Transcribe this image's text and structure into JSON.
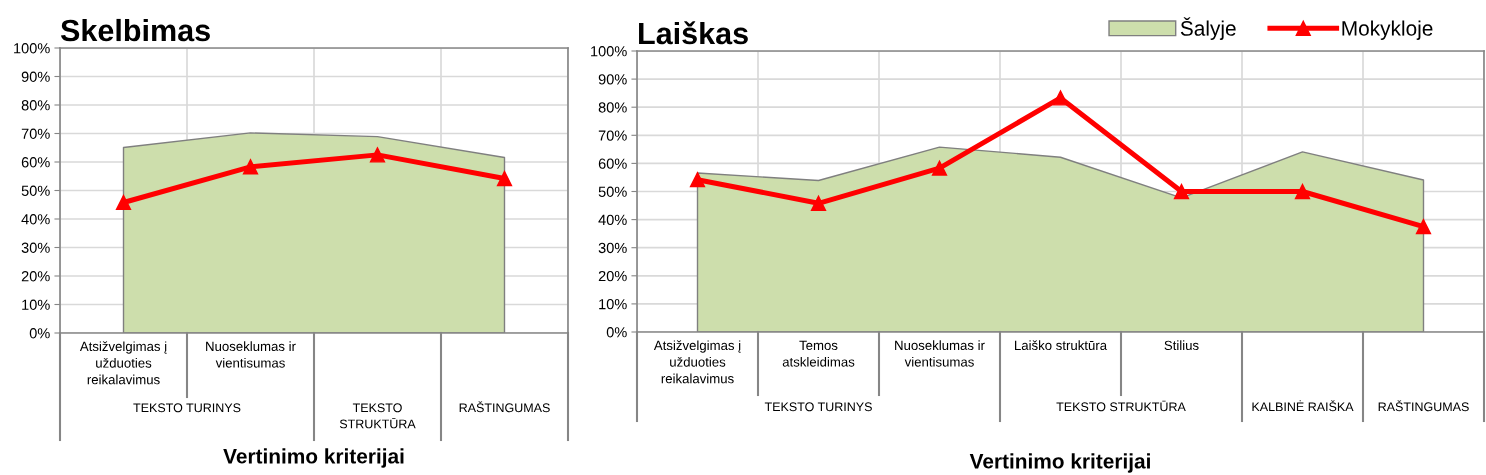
{
  "chart_data": [
    {
      "type": "line",
      "title": "Skelbimas",
      "xlabel": "Vertinimo kriterijai",
      "categories": [
        "Atsižvelgimas į\nužduoties\nreikalavimus",
        "Nuoseklumas ir\nvientisumas",
        null,
        null
      ],
      "annotations": [
        "TEKSTO TURINYS",
        "TEKSTO\nSTRUKTŪRA",
        "RAŠTINGUMAS"
      ],
      "series": [
        {
          "type": "area",
          "color": "#cddeac",
          "values": [
            65.1,
            70.2,
            68.9,
            61.6
          ]
        },
        {
          "color": "#ff0000",
          "marker": "triangle",
          "values": [
            45.8,
            58.3,
            62.5,
            54.2
          ]
        }
      ],
      "ylim": [
        0,
        100
      ],
      "yticks": [
        {
          "value": 0,
          "label": "0%"
        },
        {
          "value": 10,
          "label": "10%"
        },
        {
          "value": 20,
          "label": "20%"
        },
        {
          "value": 30,
          "label": "30%"
        },
        {
          "value": 40,
          "label": "40%"
        },
        {
          "value": 50,
          "label": "50%"
        },
        {
          "value": 60,
          "label": "60%"
        },
        {
          "value": 70,
          "label": "70%"
        },
        {
          "value": 80,
          "label": "80%"
        },
        {
          "value": 90,
          "label": "90%"
        },
        {
          "value": 100,
          "label": "100%"
        }
      ],
      "grid": true
    },
    {
      "type": "line",
      "title": "Laiškas",
      "xlabel": "Vertinimo kriterijai",
      "categories": [
        "Atsižvelgimas į\nužduoties\nreikalavimus",
        "Temos\natskleidimas",
        "Nuoseklumas ir\nvientisumas",
        "Laiško struktūra",
        "Stilius",
        null,
        null
      ],
      "annotations": [
        "TEKSTO TURINYS",
        "TEKSTO STRUKTŪRA",
        "KALBINĖ RAIŠKA",
        "RAŠTINGUMAS"
      ],
      "series": [
        {
          "name": "Šalyje",
          "type": "area",
          "color": "#cddeac",
          "values": [
            56.6,
            53.9,
            65.8,
            62.2,
            47.7,
            64.1,
            54.1
          ]
        },
        {
          "name": "Mokykloje",
          "color": "#ff0000",
          "marker": "triangle",
          "values": [
            54.2,
            45.8,
            58.3,
            83.3,
            50.0,
            50.0,
            37.5
          ]
        }
      ],
      "ylim": [
        0,
        100
      ],
      "yticks": [
        {
          "value": 0,
          "label": "0%"
        },
        {
          "value": 10,
          "label": "10%"
        },
        {
          "value": 20,
          "label": "20%"
        },
        {
          "value": 30,
          "label": "30%"
        },
        {
          "value": 40,
          "label": "40%"
        },
        {
          "value": 50,
          "label": "50%"
        },
        {
          "value": 60,
          "label": "60%"
        },
        {
          "value": 70,
          "label": "70%"
        },
        {
          "value": 80,
          "label": "80%"
        },
        {
          "value": 90,
          "label": "90%"
        },
        {
          "value": 100,
          "label": "100%"
        }
      ],
      "grid": true,
      "legend": "top right"
    }
  ]
}
